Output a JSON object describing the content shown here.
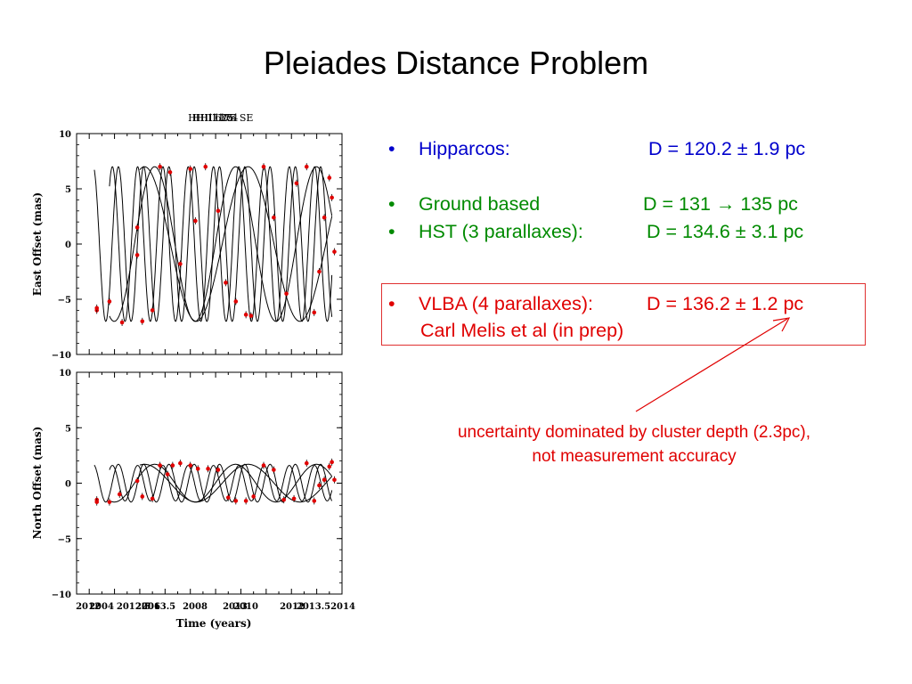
{
  "slide": {
    "title": "Pleiades Distance Problem"
  },
  "colors": {
    "blue": "#0000cc",
    "green": "#008a00",
    "red": "#e00000",
    "points": "#e00000"
  },
  "bullets": [
    {
      "bullet": "•",
      "label": "Hipparcos:",
      "value": "D = 120.2 ± 1.9 pc",
      "color": "#0000cc"
    },
    {
      "bullet": "•",
      "label": "Ground based",
      "value": "D = 131 → 135 pc",
      "color": "#008a00"
    },
    {
      "bullet": "•",
      "label": "HST (3 parallaxes):",
      "value": "D = 134.6 ± 3.1 pc",
      "color": "#008a00"
    },
    {
      "bullet": "•",
      "label": "VLBA (4 parallaxes):",
      "value": "D = 136.2 ± 1.2 pc",
      "color": "#e00000"
    }
  ],
  "vlba_subline": "Carl Melis et al (in prep)",
  "note": {
    "line1": "uncertainty dominated by cluster depth (2.3pc),",
    "line2": "not measurement accuracy"
  },
  "chart_data": [
    {
      "type": "scatter",
      "panel": "top",
      "title_overlap": "HII 1136 HII 625 HII 174 HII 1175 SE",
      "title_visible": "HII 1136 SE",
      "ylabel": "East Offset (mas)",
      "xlabel": "",
      "ylim": [
        -10,
        10
      ],
      "xlim": [
        2003.5,
        2014
      ],
      "yticks": [
        -10,
        -5,
        0,
        5,
        10
      ],
      "ytick_labels": [
        "−10",
        "−5",
        "0",
        "5",
        "10"
      ],
      "series": [
        {
          "period": 1.0,
          "amp": 7.0,
          "phase": 0.6,
          "tmin": 2004.2,
          "tmax": 2013.6
        },
        {
          "period": 1.0,
          "amp": 7.0,
          "phase": 2.1,
          "tmin": 2004.8,
          "tmax": 2013.6
        },
        {
          "period": 3.2,
          "amp": 7.0,
          "phase": 1.2,
          "tmin": 2004.8,
          "tmax": 2013.6
        },
        {
          "period": 4.1,
          "amp": 7.0,
          "phase": -0.4,
          "tmin": 2006.0,
          "tmax": 2013.6
        }
      ],
      "points": [
        [
          2004.3,
          -6.0
        ],
        [
          2004.3,
          -5.8
        ],
        [
          2004.8,
          -5.2
        ],
        [
          2005.9,
          -1.0
        ],
        [
          2005.9,
          1.5
        ],
        [
          2006.1,
          -7.0
        ],
        [
          2006.5,
          -6.0
        ],
        [
          2006.8,
          7.0
        ],
        [
          2007.2,
          6.5
        ],
        [
          2007.6,
          -1.8
        ],
        [
          2008.0,
          6.8
        ],
        [
          2008.2,
          2.1
        ],
        [
          2008.6,
          7.0
        ],
        [
          2009.1,
          3.0
        ],
        [
          2009.4,
          -3.5
        ],
        [
          2009.8,
          -5.2
        ],
        [
          2010.2,
          -6.4
        ],
        [
          2010.4,
          -6.5
        ],
        [
          2010.9,
          7.0
        ],
        [
          2011.3,
          2.4
        ],
        [
          2011.8,
          -4.5
        ],
        [
          2012.2,
          5.5
        ],
        [
          2012.6,
          7.0
        ],
        [
          2012.9,
          -6.2
        ],
        [
          2013.1,
          -2.5
        ],
        [
          2013.3,
          2.4
        ],
        [
          2013.5,
          6.0
        ],
        [
          2013.6,
          4.2
        ],
        [
          2013.7,
          -0.7
        ],
        [
          2005.3,
          -7.1
        ]
      ]
    },
    {
      "type": "scatter",
      "panel": "bottom",
      "ylabel": "North Offset (mas)",
      "xlabel": "Time (years)",
      "ylim": [
        -10,
        10
      ],
      "xlim": [
        2003.5,
        2014
      ],
      "yticks": [
        -10,
        -5,
        0,
        5,
        10
      ],
      "ytick_labels": [
        "−10",
        "−5",
        "0",
        "5",
        "10"
      ],
      "xtick_labels": [
        "2012",
        "2004",
        "2012.5",
        "2006",
        "2013.5",
        "2008",
        "2013",
        "2010",
        "2012",
        "2013.5",
        "2014"
      ],
      "series": [
        {
          "period": 1.0,
          "amp": 1.7,
          "phase": 0.6,
          "tmin": 2004.2,
          "tmax": 2013.6
        },
        {
          "period": 1.0,
          "amp": 1.6,
          "phase": 2.1,
          "tmin": 2004.8,
          "tmax": 2013.6
        },
        {
          "period": 3.2,
          "amp": 1.7,
          "phase": 1.2,
          "tmin": 2004.8,
          "tmax": 2013.6
        },
        {
          "period": 4.1,
          "amp": 1.7,
          "phase": -0.4,
          "tmin": 2006.0,
          "tmax": 2013.6
        }
      ],
      "points": [
        [
          2004.3,
          -1.5
        ],
        [
          2004.3,
          -1.7
        ],
        [
          2004.8,
          -1.7
        ],
        [
          2005.2,
          -1.0
        ],
        [
          2005.9,
          0.2
        ],
        [
          2006.1,
          -1.2
        ],
        [
          2006.5,
          -1.4
        ],
        [
          2006.8,
          1.6
        ],
        [
          2007.1,
          0.8
        ],
        [
          2007.3,
          1.6
        ],
        [
          2007.6,
          1.8
        ],
        [
          2008.0,
          1.6
        ],
        [
          2008.3,
          1.3
        ],
        [
          2008.7,
          1.3
        ],
        [
          2009.1,
          1.2
        ],
        [
          2009.5,
          -1.3
        ],
        [
          2009.8,
          -1.6
        ],
        [
          2010.2,
          -1.6
        ],
        [
          2010.5,
          -1.2
        ],
        [
          2010.9,
          1.6
        ],
        [
          2011.3,
          1.2
        ],
        [
          2011.7,
          -1.5
        ],
        [
          2012.1,
          -1.4
        ],
        [
          2012.6,
          1.8
        ],
        [
          2012.9,
          -1.6
        ],
        [
          2013.1,
          -0.2
        ],
        [
          2013.3,
          0.3
        ],
        [
          2013.5,
          1.5
        ],
        [
          2013.6,
          1.9
        ],
        [
          2013.7,
          0.3
        ]
      ]
    }
  ]
}
